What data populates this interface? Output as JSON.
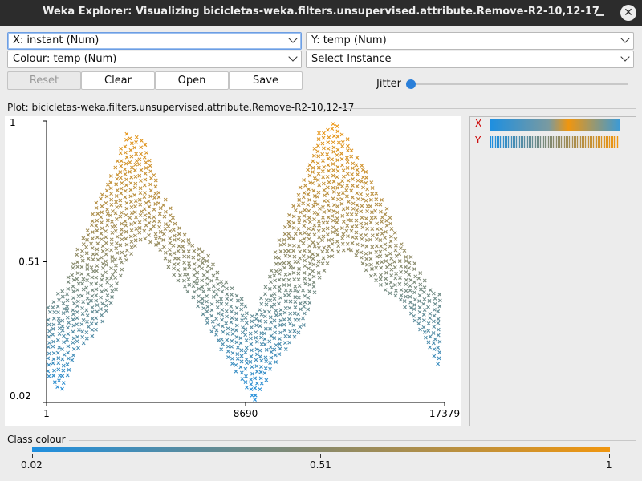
{
  "window": {
    "title": "Weka Explorer: Visualizing bicicletas-weka.filters.unsupervised.attribute.Remove-R2-10,12-17"
  },
  "controls": {
    "x_axis": "X: instant (Num)",
    "y_axis": "Y: temp (Num)",
    "colour": "Colour: temp (Num)",
    "instance": "Select Instance",
    "buttons": {
      "reset": "Reset",
      "clear": "Clear",
      "open": "Open",
      "save": "Save"
    },
    "jitter_label": "Jitter",
    "jitter_value": 0
  },
  "plot": {
    "title": "Plot: bicicletas-weka.filters.unsupervised.attribute.Remove-R2-10,12-17"
  },
  "chart_data": {
    "type": "scatter",
    "marker": "x",
    "x_attribute": "instant",
    "y_attribute": "temp",
    "colour_attribute": "temp",
    "xlim": [
      1,
      17379
    ],
    "ylim": [
      0.02,
      1
    ],
    "x_tick_labels": [
      "1",
      "8690",
      "17379"
    ],
    "y_tick_labels": [
      "1",
      "0.51",
      "0.02"
    ],
    "envelope": {
      "x": [
        1,
        700,
        1400,
        2100,
        2800,
        3500,
        4200,
        4900,
        5600,
        6300,
        7000,
        7700,
        8400,
        9100,
        9800,
        10500,
        11200,
        11900,
        12600,
        13300,
        14000,
        14700,
        15400,
        16100,
        16800,
        17379
      ],
      "y_min": [
        0.12,
        0.06,
        0.22,
        0.26,
        0.36,
        0.52,
        0.6,
        0.56,
        0.46,
        0.4,
        0.3,
        0.2,
        0.12,
        0.02,
        0.14,
        0.22,
        0.28,
        0.46,
        0.54,
        0.56,
        0.48,
        0.42,
        0.38,
        0.3,
        0.2,
        0.12
      ],
      "y_max": [
        0.34,
        0.42,
        0.56,
        0.7,
        0.82,
        0.96,
        0.94,
        0.78,
        0.66,
        0.58,
        0.54,
        0.46,
        0.4,
        0.32,
        0.5,
        0.66,
        0.8,
        0.96,
        1.0,
        0.92,
        0.82,
        0.72,
        0.6,
        0.5,
        0.42,
        0.38
      ]
    }
  },
  "side_legend": {
    "x_label": "X",
    "y_label": "Y",
    "label_color": "#cc0000"
  },
  "colour_legend": {
    "title": "Class colour",
    "min": "0.02",
    "mid": "0.51",
    "max": "1",
    "low_color": "#1e8fe0",
    "mid_color": "#8a8a6a",
    "high_color": "#f0960f"
  }
}
